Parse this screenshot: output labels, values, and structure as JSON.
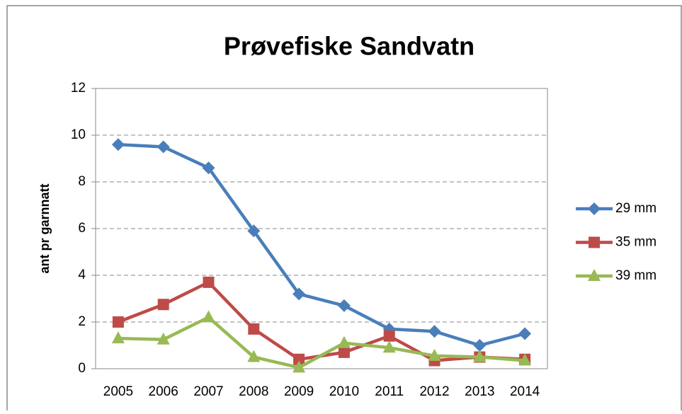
{
  "chart_data": {
    "type": "line",
    "title": "Prøvefiske Sandvatn",
    "y_label": "ant pr garnnatt",
    "categories": [
      "2005",
      "2006",
      "2007",
      "2008",
      "2009",
      "2010",
      "2011",
      "2012",
      "2013",
      "2014"
    ],
    "series": [
      {
        "name": "29 mm",
        "color": "#4a7ebb",
        "marker": "diamond",
        "values": [
          9.6,
          9.5,
          8.6,
          5.9,
          3.2,
          2.7,
          1.7,
          1.6,
          1.0,
          1.5
        ]
      },
      {
        "name": "35 mm",
        "color": "#be4b48",
        "marker": "square",
        "values": [
          2.0,
          2.75,
          3.7,
          1.7,
          0.4,
          0.7,
          1.4,
          0.35,
          0.5,
          0.4
        ]
      },
      {
        "name": "39 mm",
        "color": "#98b954",
        "marker": "triangle",
        "values": [
          1.3,
          1.25,
          2.2,
          0.5,
          0.05,
          1.1,
          0.9,
          0.55,
          0.5,
          0.35
        ]
      }
    ],
    "ylim": [
      0,
      12
    ],
    "yticks": [
      0,
      2,
      4,
      6,
      8,
      10,
      12
    ],
    "grid": true,
    "legend": "right"
  }
}
